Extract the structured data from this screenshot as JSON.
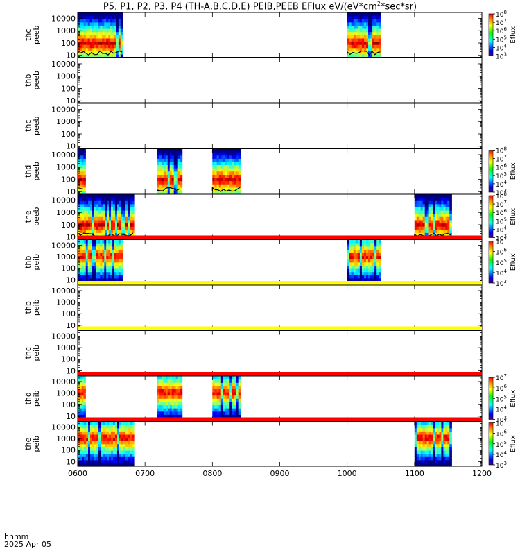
{
  "title": {
    "part1": "P5, P1, P2, P3, P4 (TH-A,B,C,D,E) PEIB,PEEB EFlux eV/(eV*cm",
    "sup1": "2",
    "part2": "*sec*sr)"
  },
  "x_label_1": "hhmm",
  "x_label_2": "2025 Apr 05",
  "colorbar_label": "Eflux",
  "chart_data": {
    "type": "heatmap",
    "x_range": [
      "0600",
      "1200"
    ],
    "x_ticks": [
      "0600",
      "0700",
      "0800",
      "0900",
      "1000",
      "1100",
      "1200"
    ],
    "y_scale": "log",
    "y_units": "eV",
    "panels": [
      {
        "name": "thc\npeeb",
        "ylabels": [
          "thc",
          "peeb"
        ],
        "y_ticks": [
          "10",
          "100",
          "1000",
          "10000"
        ],
        "y_range": [
          7,
          30000
        ],
        "top_bar": null,
        "colorbar": [
          "10^3",
          "10^4",
          "10^5",
          "10^6",
          "10^7",
          "10^8"
        ],
        "intervals": [
          [
            "0600",
            "0640"
          ],
          [
            "1000",
            "1030"
          ]
        ],
        "floor_line": true
      },
      {
        "name": "thb\npeeb",
        "ylabels": [
          "thb",
          "peeb"
        ],
        "y_ticks": [
          "10",
          "100",
          "1000",
          "10000"
        ],
        "y_range": [
          7,
          30000
        ],
        "top_bar": null,
        "colorbar": null,
        "intervals": [],
        "floor_line": false
      },
      {
        "name": "thc\npeeb-2",
        "ylabels": [
          "thc",
          "peeb"
        ],
        "y_ticks": [
          "10",
          "100",
          "1000",
          "10000"
        ],
        "y_range": [
          7,
          30000
        ],
        "top_bar": null,
        "colorbar": null,
        "intervals": [],
        "floor_line": false
      },
      {
        "name": "thd\npeeb",
        "ylabels": [
          "thd",
          "peeb"
        ],
        "y_ticks": [
          "10",
          "100",
          "1000",
          "10000"
        ],
        "y_range": [
          7,
          30000
        ],
        "top_bar": null,
        "colorbar": [
          "10^3",
          "10^4",
          "10^5",
          "10^6",
          "10^7",
          "10^8"
        ],
        "intervals": [
          [
            "0600",
            "0607"
          ],
          [
            "0711",
            "0733"
          ],
          [
            "0800",
            "0825"
          ]
        ],
        "floor_line": true
      },
      {
        "name": "the\npeeb",
        "ylabels": [
          "the",
          "peeb"
        ],
        "y_ticks": [
          "10",
          "100",
          "1000",
          "10000"
        ],
        "y_range": [
          7,
          30000
        ],
        "top_bar": null,
        "colorbar": [
          "10^3",
          "10^4",
          "10^5",
          "10^6",
          "10^7",
          "10^8"
        ],
        "intervals": [
          [
            "0600",
            "0650"
          ],
          [
            "1100",
            "1133"
          ]
        ],
        "floor_line": true
      },
      {
        "name": "thb\npeib",
        "ylabels": [
          "thb",
          "peib"
        ],
        "y_ticks": [
          "10",
          "100",
          "1000",
          "10000"
        ],
        "y_range": [
          4,
          30000
        ],
        "top_bar": "#ff0000",
        "colorbar": [
          "10^3",
          "10^4",
          "10^5",
          "10^6",
          "10^7"
        ],
        "intervals": [
          [
            "0600",
            "0640"
          ],
          [
            "1000",
            "1030"
          ]
        ],
        "floor_line": false
      },
      {
        "name": "thb\npeib-2",
        "ylabels": [
          "thb",
          "peib"
        ],
        "y_ticks": [
          "10",
          "100",
          "1000",
          "10000"
        ],
        "y_range": [
          4,
          30000
        ],
        "top_bar": "#ffff00",
        "colorbar": null,
        "intervals": [],
        "floor_line": false
      },
      {
        "name": "thc\npeib",
        "ylabels": [
          "thc",
          "peib"
        ],
        "y_ticks": [
          "10",
          "100",
          "1000",
          "10000"
        ],
        "y_range": [
          4,
          30000
        ],
        "top_bar": "#ffff00",
        "colorbar": null,
        "intervals": [],
        "floor_line": false
      },
      {
        "name": "thd\npeib",
        "ylabels": [
          "thd",
          "peib"
        ],
        "y_ticks": [
          "10",
          "100",
          "1000",
          "10000"
        ],
        "y_range": [
          4,
          30000
        ],
        "top_bar": "#ff0000",
        "colorbar": [
          "10^3",
          "10^4",
          "10^5",
          "10^6",
          "10^7"
        ],
        "intervals": [
          [
            "0600",
            "0607"
          ],
          [
            "0711",
            "0733"
          ],
          [
            "0800",
            "0825"
          ]
        ],
        "floor_line": false
      },
      {
        "name": "the\npeib",
        "ylabels": [
          "the",
          "peib"
        ],
        "y_ticks": [
          "10",
          "100",
          "1000",
          "10000"
        ],
        "y_range": [
          4,
          30000
        ],
        "top_bar": "#ff0000",
        "colorbar": [
          "10^3",
          "10^4",
          "10^5",
          "10^6",
          "10^7"
        ],
        "intervals": [
          [
            "0600",
            "0650"
          ],
          [
            "1100",
            "1133"
          ]
        ],
        "floor_line": false
      }
    ]
  }
}
